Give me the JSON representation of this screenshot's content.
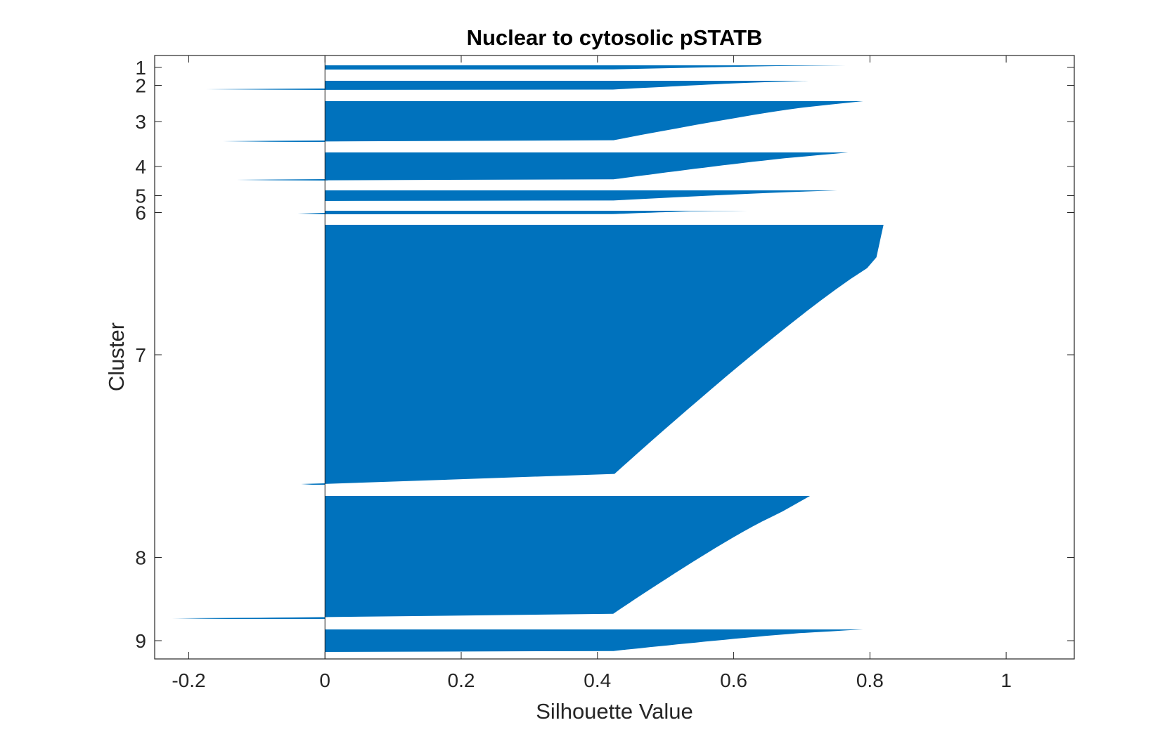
{
  "chart_data": {
    "type": "bar",
    "orientation": "horizontal",
    "title": "Nuclear to cytosolic pSTATB",
    "xlabel": "Silhouette Value",
    "ylabel": "Cluster",
    "xlim": [
      -0.25,
      1.1
    ],
    "xticks": [
      -0.2,
      0,
      0.2,
      0.4,
      0.6,
      0.8,
      1
    ],
    "xtick_labels": [
      "-0.2",
      "0",
      "0.2",
      "0.4",
      "0.6",
      "0.8",
      "1"
    ],
    "ytick_labels": [
      "1",
      "2",
      "3",
      "4",
      "5",
      "6",
      "7",
      "8",
      "9"
    ],
    "bar_color": "#0072BD",
    "grid": false,
    "clusters": [
      {
        "label": "1",
        "silhouette_max": 0.765,
        "silhouette_mid": 0.4,
        "silhouette_min": 0.0
      },
      {
        "label": "2",
        "silhouette_max": 0.71,
        "silhouette_mid": 0.45,
        "silhouette_min": -0.175
      },
      {
        "label": "3",
        "silhouette_max": 0.79,
        "silhouette_mid": 0.45,
        "silhouette_min": -0.15
      },
      {
        "label": "4",
        "silhouette_max": 0.768,
        "silhouette_mid": 0.5,
        "silhouette_min": -0.13
      },
      {
        "label": "5",
        "silhouette_max": 0.752,
        "silhouette_mid": 0.5,
        "silhouette_min": 0.0
      },
      {
        "label": "6",
        "silhouette_max": 0.62,
        "silhouette_mid": 0.3,
        "silhouette_min": -0.04
      },
      {
        "label": "7",
        "silhouette_max": 0.82,
        "silhouette_mid": 0.77,
        "silhouette_min": -0.035
      },
      {
        "label": "8",
        "silhouette_max": 0.712,
        "silhouette_mid": 0.52,
        "silhouette_min": -0.225
      },
      {
        "label": "9",
        "silhouette_max": 0.79,
        "silhouette_mid": 0.45,
        "silhouette_min": 0.0
      }
    ]
  }
}
